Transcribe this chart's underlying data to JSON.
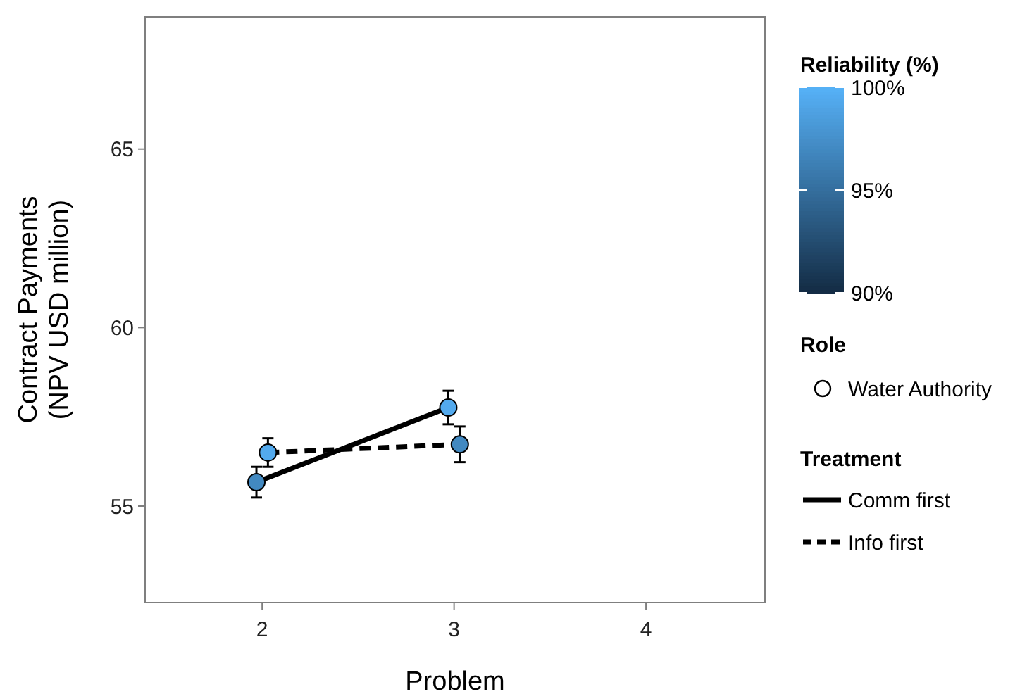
{
  "chart_data": {
    "type": "line",
    "xlabel": "Problem",
    "ylabel": "Contract Payments\n(NPV USD million)",
    "clabel": "Reliability (%)",
    "legend_title": "Treatment",
    "annotations": [
      "Role",
      "Water Authority"
    ],
    "xlim": [
      1.39,
      4.62
    ],
    "xticks": [
      2,
      3,
      4
    ],
    "ylim": [
      52.3,
      68.7
    ],
    "yticks": [
      55,
      60,
      65
    ],
    "clim": [
      90,
      100
    ],
    "cticks": [
      {
        "value": 90,
        "label": "90%"
      },
      {
        "value": 95,
        "label": "95%"
      },
      {
        "value": 100,
        "label": "100%"
      }
    ],
    "grid": false,
    "legend": "right",
    "series": [
      {
        "name": "Comm first",
        "color": "#000000",
        "line_style": "solid",
        "x": [
          1.97,
          2.97
        ],
        "values": [
          55.67,
          57.76
        ]
      },
      {
        "name": "Info first",
        "color": "#000000",
        "line_style": "dashed",
        "x": [
          2.03,
          3.03
        ],
        "values": [
          56.5,
          56.73
        ]
      },
      {
        "type": "scatter",
        "marker": "circle",
        "x": [
          1.97,
          2.97,
          2.03,
          3.03
        ],
        "values": [
          55.67,
          57.76,
          56.5,
          56.73
        ],
        "errors": [
          0.43,
          0.47,
          0.4,
          0.5
        ],
        "cvalues": [
          97,
          99.5,
          99.5,
          97
        ],
        "colors": [
          "#4289c1",
          "#53aaee",
          "#53aaee",
          "#4289c1"
        ]
      }
    ]
  }
}
